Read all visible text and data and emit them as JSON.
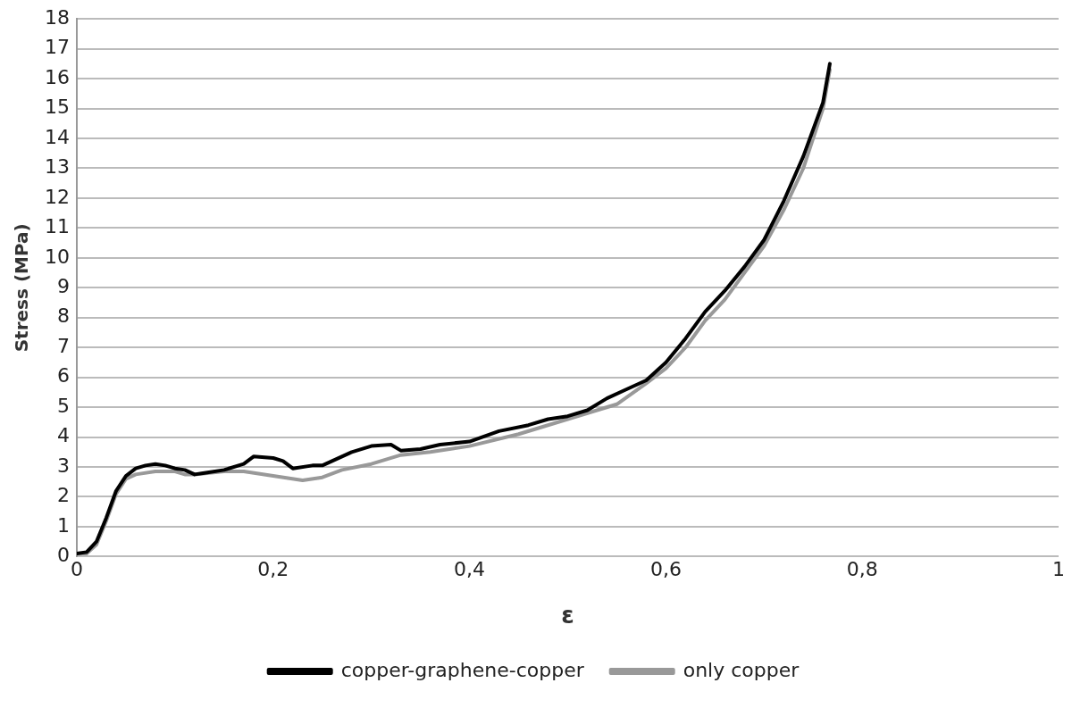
{
  "chart_data": {
    "type": "line",
    "xlabel": "ε",
    "ylabel": "Stress (MPa)",
    "xlim": [
      0,
      1
    ],
    "xticks": [
      0,
      {
        "value": 0.2,
        "label": "0,2"
      },
      {
        "value": 0.4,
        "label": "0,4"
      },
      {
        "value": 0.6,
        "label": "0,6"
      },
      {
        "value": 0.8,
        "label": "0,8"
      },
      1
    ],
    "ylim": [
      0,
      18
    ],
    "yticks": [
      0,
      1,
      2,
      3,
      4,
      5,
      6,
      7,
      8,
      9,
      10,
      11,
      12,
      13,
      14,
      15,
      16,
      17,
      18
    ],
    "grid": "y",
    "legend": "bottom",
    "marker": "none",
    "line_style": "solid",
    "series": [
      {
        "name": "copper-graphene-copper",
        "color": "#000000",
        "x": [
          0,
          0.01,
          0.02,
          0.03,
          0.04,
          0.05,
          0.06,
          0.07,
          0.08,
          0.09,
          0.1,
          0.11,
          0.12,
          0.13,
          0.15,
          0.17,
          0.18,
          0.2,
          0.21,
          0.22,
          0.24,
          0.25,
          0.26,
          0.28,
          0.3,
          0.32,
          0.33,
          0.35,
          0.37,
          0.4,
          0.43,
          0.46,
          0.48,
          0.5,
          0.52,
          0.54,
          0.56,
          0.58,
          0.6,
          0.62,
          0.64,
          0.66,
          0.68,
          0.7,
          0.72,
          0.74,
          0.76,
          0.767
        ],
        "values": [
          0.1,
          0.15,
          0.5,
          1.3,
          2.2,
          2.7,
          2.95,
          3.05,
          3.1,
          3.05,
          2.95,
          2.9,
          2.75,
          2.8,
          2.9,
          3.1,
          3.35,
          3.3,
          3.2,
          2.95,
          3.05,
          3.05,
          3.2,
          3.5,
          3.7,
          3.75,
          3.55,
          3.6,
          3.75,
          3.85,
          4.2,
          4.4,
          4.6,
          4.7,
          4.9,
          5.3,
          5.6,
          5.9,
          6.5,
          7.3,
          8.2,
          8.9,
          9.7,
          10.6,
          11.9,
          13.4,
          15.2,
          16.5
        ]
      },
      {
        "name": "only copper",
        "color": "#999999",
        "x": [
          0,
          0.01,
          0.02,
          0.03,
          0.04,
          0.05,
          0.06,
          0.08,
          0.1,
          0.11,
          0.12,
          0.15,
          0.17,
          0.2,
          0.23,
          0.25,
          0.27,
          0.3,
          0.33,
          0.36,
          0.4,
          0.45,
          0.5,
          0.55,
          0.58,
          0.6,
          0.62,
          0.64,
          0.66,
          0.68,
          0.7,
          0.72,
          0.74,
          0.76,
          0.767
        ],
        "values": [
          0.1,
          0.1,
          0.4,
          1.2,
          2.1,
          2.6,
          2.75,
          2.85,
          2.85,
          2.75,
          2.75,
          2.85,
          2.85,
          2.7,
          2.55,
          2.65,
          2.9,
          3.1,
          3.4,
          3.5,
          3.7,
          4.1,
          4.6,
          5.1,
          5.8,
          6.3,
          7.0,
          7.9,
          8.6,
          9.5,
          10.4,
          11.6,
          13.0,
          15.0,
          16.3
        ]
      }
    ]
  }
}
